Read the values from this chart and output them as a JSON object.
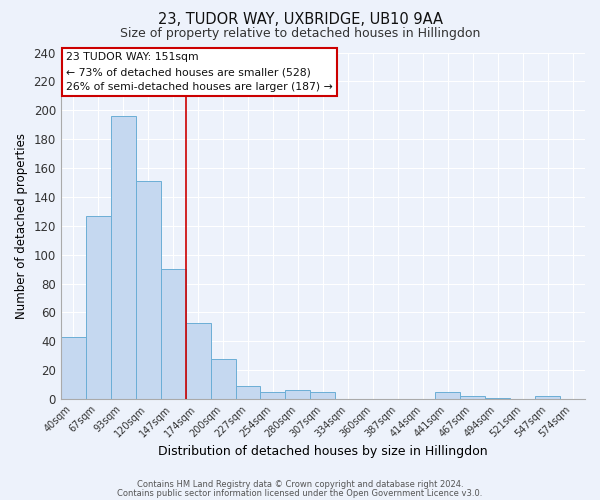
{
  "title": "23, TUDOR WAY, UXBRIDGE, UB10 9AA",
  "subtitle": "Size of property relative to detached houses in Hillingdon",
  "xlabel": "Distribution of detached houses by size in Hillingdon",
  "ylabel": "Number of detached properties",
  "bar_labels": [
    "40sqm",
    "67sqm",
    "93sqm",
    "120sqm",
    "147sqm",
    "174sqm",
    "200sqm",
    "227sqm",
    "254sqm",
    "280sqm",
    "307sqm",
    "334sqm",
    "360sqm",
    "387sqm",
    "414sqm",
    "441sqm",
    "467sqm",
    "494sqm",
    "521sqm",
    "547sqm",
    "574sqm"
  ],
  "bar_values": [
    43,
    127,
    196,
    151,
    90,
    53,
    28,
    9,
    5,
    6,
    5,
    0,
    0,
    0,
    0,
    5,
    2,
    1,
    0,
    2,
    0
  ],
  "bar_color": "#c5d8f0",
  "bar_edge_color": "#6baed6",
  "vline_color": "#cc0000",
  "annotation_line1": "23 TUDOR WAY: 151sqm",
  "annotation_line2": "← 73% of detached houses are smaller (528)",
  "annotation_line3": "26% of semi-detached houses are larger (187) →",
  "ylim": [
    0,
    240
  ],
  "yticks": [
    0,
    20,
    40,
    60,
    80,
    100,
    120,
    140,
    160,
    180,
    200,
    220,
    240
  ],
  "footer1": "Contains HM Land Registry data © Crown copyright and database right 2024.",
  "footer2": "Contains public sector information licensed under the Open Government Licence v3.0.",
  "bg_color": "#edf2fb",
  "grid_color": "#ffffff"
}
